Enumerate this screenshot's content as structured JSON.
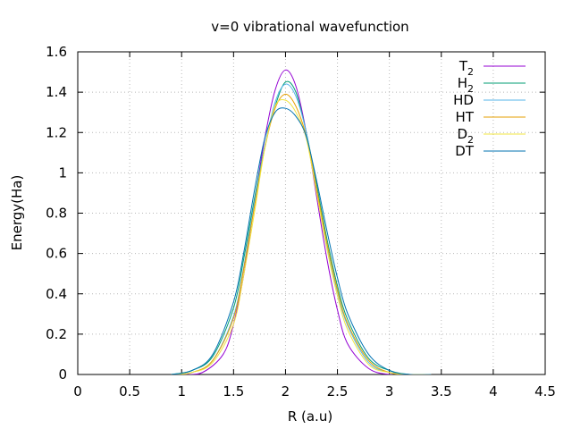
{
  "chart_data": {
    "type": "line",
    "title": "v=0 vibrational wavefunction",
    "xlabel": "R (a.u)",
    "ylabel": "Energy(Ha)",
    "xlim": [
      0,
      4.5
    ],
    "ylim": [
      0,
      1.6
    ],
    "xticks": [
      0,
      0.5,
      1,
      1.5,
      2,
      2.5,
      3,
      3.5,
      4,
      4.5
    ],
    "xtick_labels": [
      "0",
      "0.5",
      "1",
      "1.5",
      "2",
      "2.5",
      "3",
      "3.5",
      "4",
      "4.5"
    ],
    "yticks": [
      0,
      0.2,
      0.4,
      0.6,
      0.8,
      1.0,
      1.2,
      1.4,
      1.6
    ],
    "ytick_labels": [
      "0",
      "0.2",
      "0.4",
      "0.6",
      "0.8",
      "1",
      "1.2",
      "1.4",
      "1.6"
    ],
    "grid": true,
    "legend_position": "top-right",
    "series": [
      {
        "name": "T2",
        "label_main": "T",
        "label_sub": "2",
        "color": "#9400d3",
        "x": [
          1.0,
          1.2,
          1.4,
          1.5,
          1.6,
          1.7,
          1.8,
          1.9,
          2.0,
          2.1,
          2.2,
          2.3,
          2.4,
          2.5,
          2.6,
          2.8,
          3.0,
          3.2
        ],
        "y": [
          0.0,
          0.01,
          0.1,
          0.25,
          0.5,
          0.85,
          1.17,
          1.41,
          1.51,
          1.43,
          1.2,
          0.88,
          0.57,
          0.32,
          0.15,
          0.03,
          0.0,
          0.0
        ]
      },
      {
        "name": "H2",
        "label_main": "H",
        "label_sub": "2",
        "color": "#009e73",
        "x": [
          0.9,
          1.1,
          1.3,
          1.5,
          1.6,
          1.7,
          1.8,
          1.9,
          2.0,
          2.1,
          2.2,
          2.3,
          2.4,
          2.5,
          2.6,
          2.8,
          3.0,
          3.2,
          3.4
        ],
        "y": [
          0.0,
          0.02,
          0.09,
          0.33,
          0.58,
          0.87,
          1.13,
          1.33,
          1.45,
          1.4,
          1.2,
          0.94,
          0.67,
          0.44,
          0.27,
          0.08,
          0.02,
          0.0,
          0.0
        ]
      },
      {
        "name": "HD",
        "label_main": "HD",
        "label_sub": "",
        "color": "#56b4e9",
        "x": [
          0.9,
          1.1,
          1.3,
          1.5,
          1.6,
          1.7,
          1.8,
          1.9,
          2.0,
          2.1,
          2.2,
          2.3,
          2.4,
          2.5,
          2.6,
          2.8,
          3.0,
          3.2,
          3.4
        ],
        "y": [
          0.0,
          0.01,
          0.07,
          0.29,
          0.54,
          0.85,
          1.13,
          1.35,
          1.44,
          1.38,
          1.2,
          0.92,
          0.64,
          0.41,
          0.24,
          0.06,
          0.01,
          0.0,
          0.0
        ]
      },
      {
        "name": "HT",
        "label_main": "HT",
        "label_sub": "",
        "color": "#e69f00",
        "x": [
          0.9,
          1.1,
          1.3,
          1.5,
          1.6,
          1.7,
          1.8,
          1.9,
          2.0,
          2.1,
          2.2,
          2.3,
          2.4,
          2.5,
          2.6,
          2.8,
          3.0,
          3.2,
          3.4
        ],
        "y": [
          0.0,
          0.01,
          0.07,
          0.28,
          0.53,
          0.83,
          1.12,
          1.32,
          1.39,
          1.33,
          1.18,
          0.92,
          0.65,
          0.42,
          0.25,
          0.07,
          0.01,
          0.0,
          0.0
        ]
      },
      {
        "name": "D2",
        "label_main": "D",
        "label_sub": "2",
        "color": "#f0e442",
        "x": [
          0.9,
          1.1,
          1.3,
          1.5,
          1.6,
          1.7,
          1.8,
          1.9,
          2.0,
          2.1,
          2.2,
          2.3,
          2.4,
          2.5,
          2.6,
          2.8,
          3.0,
          3.2,
          3.4
        ],
        "y": [
          0.0,
          0.01,
          0.06,
          0.25,
          0.5,
          0.8,
          1.12,
          1.33,
          1.36,
          1.3,
          1.17,
          0.9,
          0.62,
          0.39,
          0.22,
          0.05,
          0.01,
          0.0,
          0.0
        ]
      },
      {
        "name": "DT",
        "label_main": "DT",
        "label_sub": "",
        "color": "#0072b2",
        "x": [
          0.9,
          1.1,
          1.3,
          1.5,
          1.6,
          1.7,
          1.8,
          1.9,
          2.0,
          2.1,
          2.2,
          2.3,
          2.4,
          2.5,
          2.6,
          2.8,
          3.0,
          3.2,
          3.4
        ],
        "y": [
          0.0,
          0.02,
          0.1,
          0.36,
          0.61,
          0.91,
          1.17,
          1.3,
          1.32,
          1.28,
          1.18,
          0.96,
          0.71,
          0.48,
          0.3,
          0.1,
          0.02,
          0.0,
          0.0
        ]
      }
    ]
  }
}
